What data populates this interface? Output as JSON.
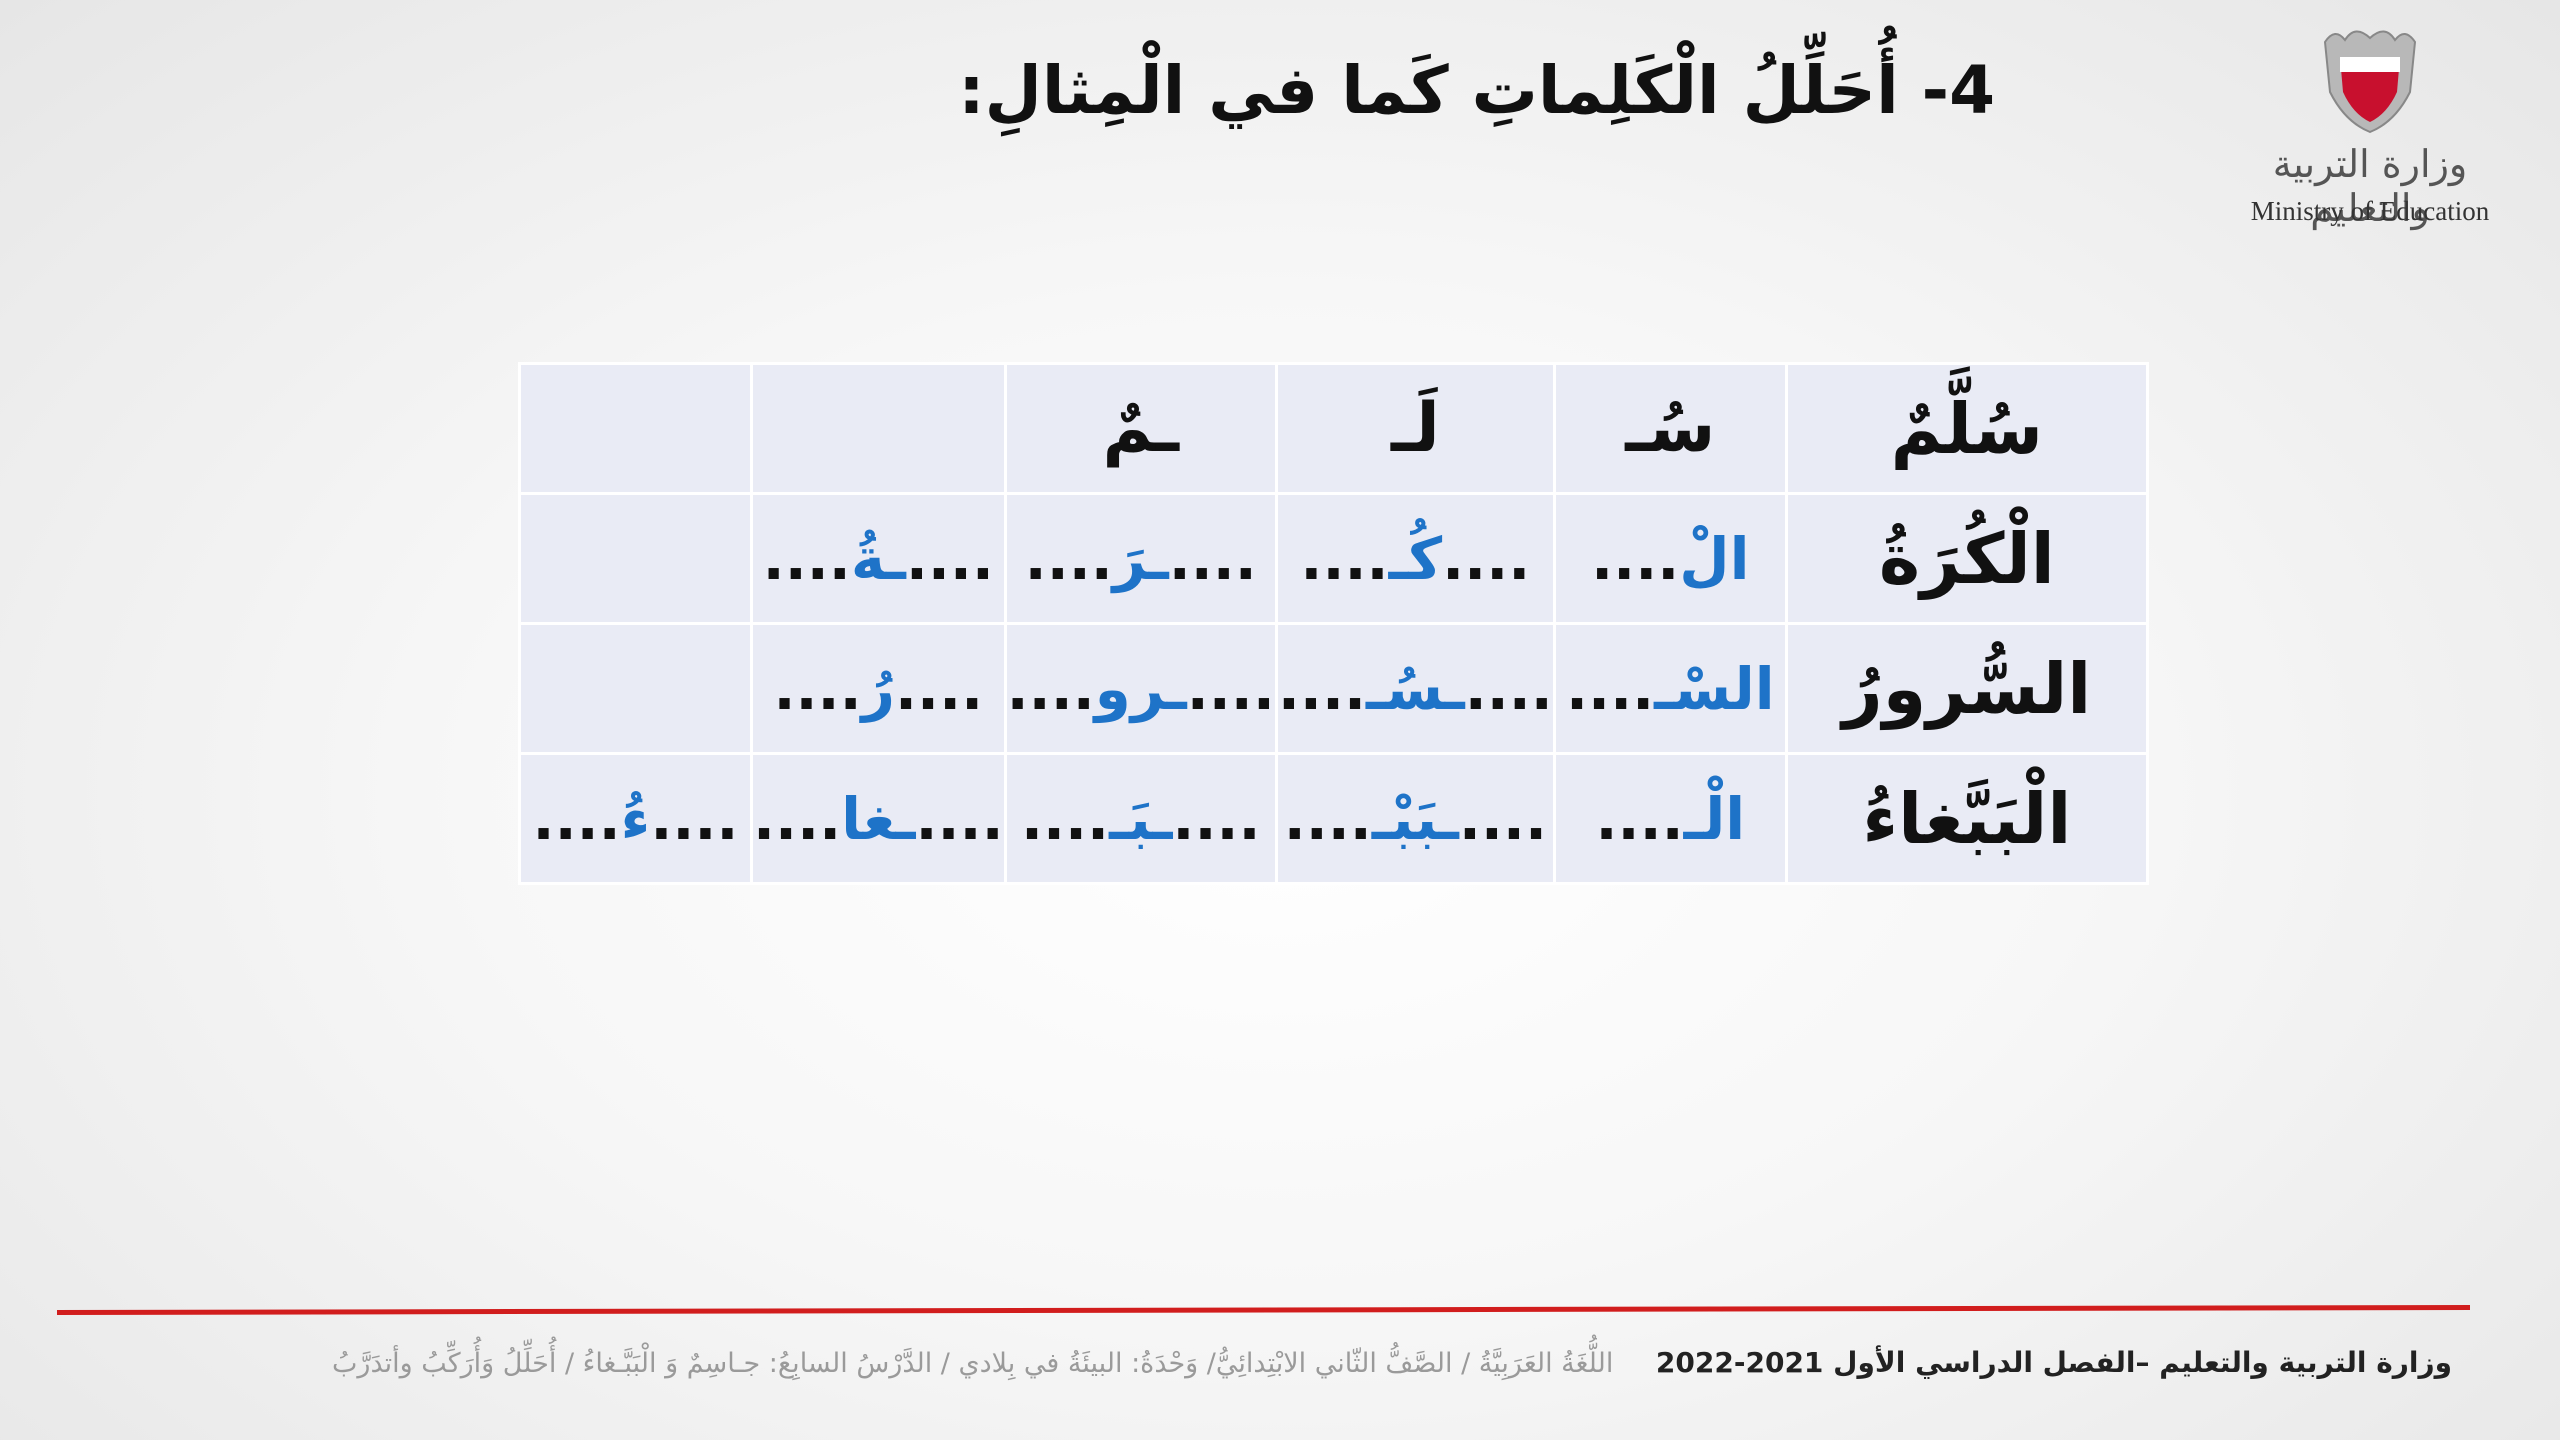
{
  "title": "4- أُحَلِّلُ الْكَلِماتِ كَما في الْمِثالِ:",
  "logo": {
    "arabic": "وزارة التربية والتعليم",
    "english": "Ministry of Education"
  },
  "table": {
    "rows": [
      {
        "word": "سُلَّمٌ",
        "parts": [
          "سُـ",
          "لَـ",
          "ـمٌ",
          "",
          ""
        ]
      },
      {
        "word": "الْكُرَةُ",
        "parts": [
          {
            "dots": "....",
            "blue": "الْ"
          },
          {
            "dots": "....",
            "blue": "كُـ",
            "dots2": "...."
          },
          {
            "dots": "....",
            "blue": "ـرَ",
            "dots2": "...."
          },
          {
            "dots": "....",
            "blue": "ـةُ",
            "dots2": "...."
          },
          ""
        ]
      },
      {
        "word": "السُّرورُ",
        "parts": [
          {
            "dots": "....",
            "blue": "السْـ"
          },
          {
            "dots": "....",
            "blue": "ـسُـ",
            "dots2": "...."
          },
          {
            "dots": "....",
            "blue": "ـرو",
            "dots2": "...."
          },
          {
            "dots": "....",
            "blue": "رُ",
            "dots2": "...."
          },
          ""
        ]
      },
      {
        "word": "الْبَبَّغاءُ",
        "parts": [
          {
            "dots": "....",
            "blue": "الْـ"
          },
          {
            "dots": "....",
            "blue": "ـبَبْـ",
            "dots2": "...."
          },
          {
            "dots": "....",
            "blue": "ـبَـ",
            "dots2": "...."
          },
          {
            "dots": "....",
            "blue": "ـغا",
            "dots2": "...."
          },
          {
            "dots": "....",
            "blue": "ءُ",
            "dots2": "...."
          }
        ]
      }
    ]
  },
  "footer": {
    "right": "وزارة التربية والتعليم –الفصل الدراسي الأول 2021-2022",
    "left": "اللُّغَةُ العَرَبِيَّةُ / الصَّفُّ الثّاني الابْتِدائِيُّ/ وَحْدَةُ: البيئَةُ في بِلادي / الدَّرْسُ السابِعُ: جـاسِمٌ وَ الْبَبَّـغاءُ / أُحَلِّلُ وَأُرَكِّبُ وأتدَرَّبُ"
  },
  "colors": {
    "answer_blue": "#1e73c8",
    "footer_red": "#d11d1d",
    "cell_bg": "#e9ebf5"
  }
}
